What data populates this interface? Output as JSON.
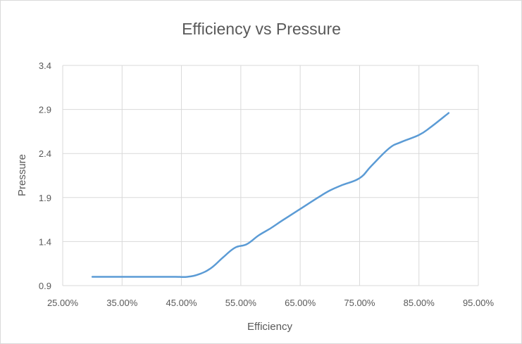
{
  "chart_data": {
    "type": "line",
    "title": "Efficiency vs Pressure",
    "xlabel": "Efficiency",
    "ylabel": "Pressure",
    "xlim": [
      0.25,
      0.95
    ],
    "ylim": [
      0.9,
      3.4
    ],
    "x_ticks": [
      "25.00%",
      "35.00%",
      "45.00%",
      "55.00%",
      "65.00%",
      "75.00%",
      "85.00%",
      "95.00%"
    ],
    "y_ticks": [
      "0.9",
      "1.4",
      "1.9",
      "2.4",
      "2.9",
      "3.4"
    ],
    "x_tick_values": [
      0.25,
      0.35,
      0.45,
      0.55,
      0.65,
      0.75,
      0.85,
      0.95
    ],
    "y_tick_values": [
      0.9,
      1.4,
      1.9,
      2.4,
      2.9,
      3.4
    ],
    "grid": true,
    "legend": "none",
    "series": [
      {
        "color": "#5b9bd5",
        "x": [
          0.3,
          0.35,
          0.4,
          0.44,
          0.46,
          0.48,
          0.5,
          0.52,
          0.54,
          0.56,
          0.58,
          0.6,
          0.62,
          0.65,
          0.68,
          0.7,
          0.72,
          0.75,
          0.77,
          0.8,
          0.82,
          0.85,
          0.87,
          0.9
        ],
        "y": [
          1.0,
          1.0,
          1.0,
          1.0,
          1.0,
          1.03,
          1.1,
          1.22,
          1.33,
          1.37,
          1.47,
          1.55,
          1.64,
          1.77,
          1.9,
          1.98,
          2.04,
          2.12,
          2.26,
          2.46,
          2.53,
          2.61,
          2.7,
          2.86
        ]
      }
    ]
  }
}
